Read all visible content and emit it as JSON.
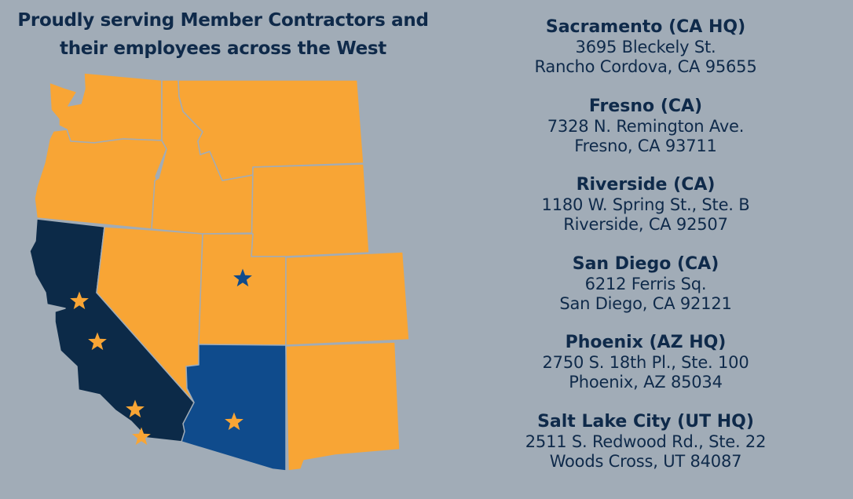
{
  "title": {
    "line1": "Proudly serving Member Contractors and",
    "line2": "their employees across the West"
  },
  "colors": {
    "background": "#a1acb7",
    "served_state": "#f8a535",
    "california_hq": "#0c2a48",
    "arizona_hq": "#0f4b8c",
    "text": "#0f2a4a"
  },
  "map": {
    "states": [
      {
        "id": "WA",
        "fill": "#f8a535"
      },
      {
        "id": "OR",
        "fill": "#f8a535"
      },
      {
        "id": "CA",
        "fill": "#0c2a48"
      },
      {
        "id": "NV",
        "fill": "#f8a535"
      },
      {
        "id": "ID",
        "fill": "#f8a535"
      },
      {
        "id": "MT",
        "fill": "#f8a535"
      },
      {
        "id": "WY",
        "fill": "#f8a535"
      },
      {
        "id": "UT",
        "fill": "#f8a535"
      },
      {
        "id": "CO",
        "fill": "#f8a535"
      },
      {
        "id": "AZ",
        "fill": "#0f4b8c"
      },
      {
        "id": "NM",
        "fill": "#f8a535"
      }
    ],
    "markers": [
      {
        "office": "Sacramento",
        "icon": "star-icon",
        "color": "#f8a535"
      },
      {
        "office": "Fresno",
        "icon": "star-icon",
        "color": "#f8a535"
      },
      {
        "office": "Riverside",
        "icon": "star-icon",
        "color": "#f8a535"
      },
      {
        "office": "San Diego",
        "icon": "star-icon",
        "color": "#f8a535"
      },
      {
        "office": "Salt Lake City",
        "icon": "star-icon",
        "color": "#0f4b8c"
      },
      {
        "office": "Phoenix",
        "icon": "star-icon",
        "color": "#f8a535"
      }
    ]
  },
  "offices": [
    {
      "name": "Sacramento (CA HQ)",
      "address1": "3695 Bleckely St.",
      "address2": "Rancho Cordova, CA 95655"
    },
    {
      "name": "Fresno (CA)",
      "address1": "7328 N. Remington Ave.",
      "address2": "Fresno, CA 93711"
    },
    {
      "name": "Riverside (CA)",
      "address1": "1180 W. Spring St., Ste. B",
      "address2": "Riverside, CA 92507"
    },
    {
      "name": "San Diego (CA)",
      "address1": "6212 Ferris Sq.",
      "address2": "San Diego, CA 92121"
    },
    {
      "name": "Phoenix (AZ HQ)",
      "address1": "2750 S. 18th Pl., Ste. 100",
      "address2": "Phoenix, AZ 85034"
    },
    {
      "name": "Salt Lake City (UT HQ)",
      "address1": "2511 S. Redwood Rd., Ste. 22",
      "address2": "Woods Cross, UT 84087"
    }
  ]
}
